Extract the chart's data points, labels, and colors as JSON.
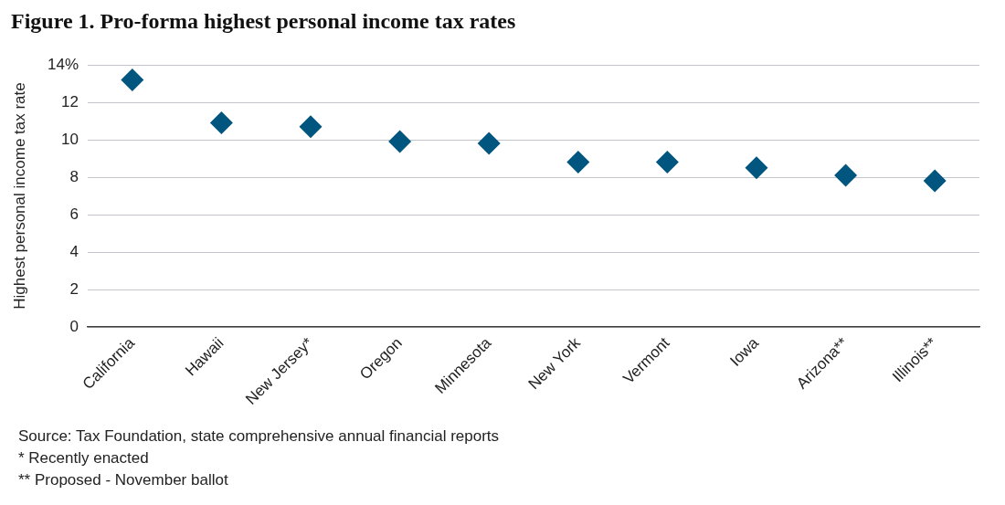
{
  "chart_data": {
    "type": "scatter",
    "title": "Figure 1. Pro-forma highest personal income tax rates",
    "ylabel": "Highest personal income tax rate",
    "categories": [
      "California",
      "Hawaii",
      "New Jersey*",
      "Oregon",
      "Minnesota",
      "New York",
      "Vermont",
      "Iowa",
      "Arizona**",
      "Illinois**"
    ],
    "values": [
      13.2,
      10.9,
      10.7,
      9.9,
      9.8,
      8.8,
      8.8,
      8.5,
      8.1,
      7.8
    ],
    "color": "#00567f",
    "marker": "diamond",
    "ylim": [
      0,
      14
    ],
    "yticks": [
      0,
      2,
      4,
      6,
      8,
      10,
      12,
      {
        "value": 14,
        "label": "14%"
      }
    ],
    "grid": "y",
    "annotations": [
      "Source: Tax Foundation, state comprehensive annual financial reports",
      "* Recently enacted",
      "** Proposed - November ballot"
    ]
  }
}
